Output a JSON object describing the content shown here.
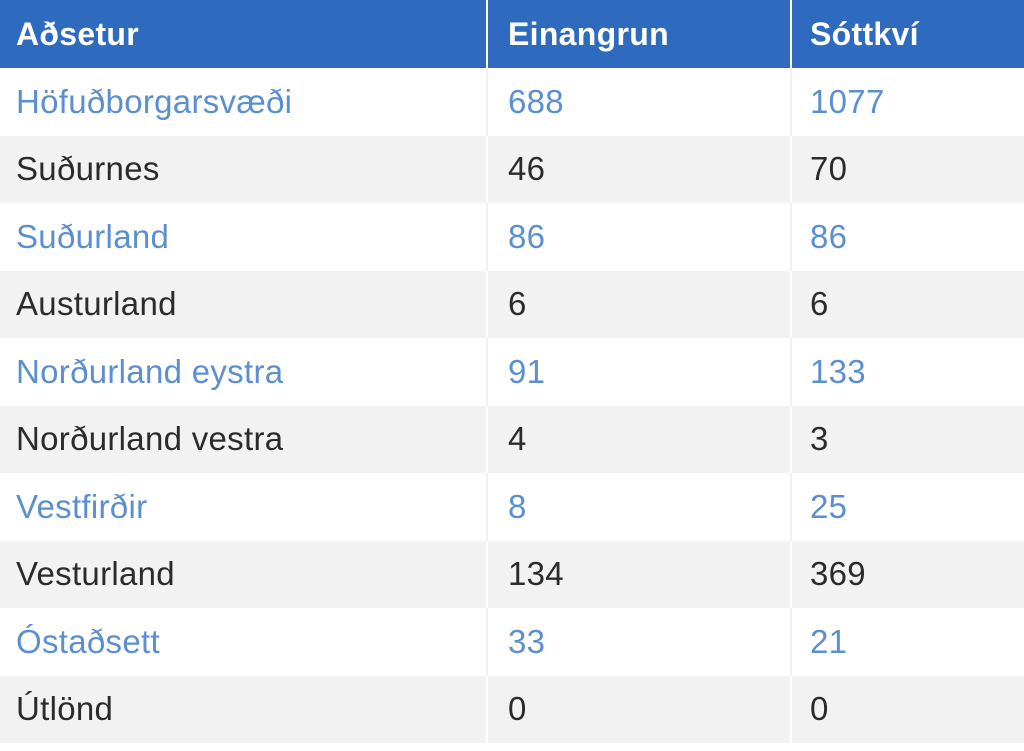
{
  "table": {
    "headers": [
      "Aðsetur",
      "Einangrun",
      "Sóttkví"
    ],
    "rows": [
      [
        "Höfuðborgarsvæði",
        "688",
        "1077"
      ],
      [
        "Suðurnes",
        "46",
        "70"
      ],
      [
        "Suðurland",
        "86",
        "86"
      ],
      [
        "Austurland",
        "6",
        "6"
      ],
      [
        "Norðurland eystra",
        "91",
        "133"
      ],
      [
        "Norðurland vestra",
        "4",
        "3"
      ],
      [
        "Vestfirðir",
        "8",
        "25"
      ],
      [
        "Vesturland",
        "134",
        "369"
      ],
      [
        "Óstaðsett",
        "33",
        "21"
      ],
      [
        "Útlönd",
        "0",
        "0"
      ]
    ]
  },
  "colors": {
    "header_bg": "#2e6bbf",
    "header_text": "#ffffff",
    "link_row_text": "#5b8fd0",
    "plain_row_text": "#2b2b2b",
    "stripe_bg": "#f2f2f2"
  }
}
